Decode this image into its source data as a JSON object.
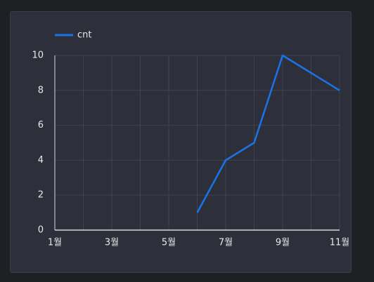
{
  "chart_data": {
    "type": "line",
    "categories": [
      "1월",
      null,
      "3월",
      null,
      "5월",
      null,
      "7월",
      null,
      "9월",
      null,
      "11월"
    ],
    "series": [
      {
        "name": "cnt",
        "color": "#1a73e8",
        "values": [
          null,
          null,
          null,
          null,
          null,
          1,
          4,
          5,
          10,
          9,
          8
        ]
      }
    ],
    "ylim": [
      0,
      10
    ],
    "yticks": [
      0,
      2,
      4,
      6,
      8,
      10
    ],
    "grid": true,
    "legend": "top-left"
  }
}
